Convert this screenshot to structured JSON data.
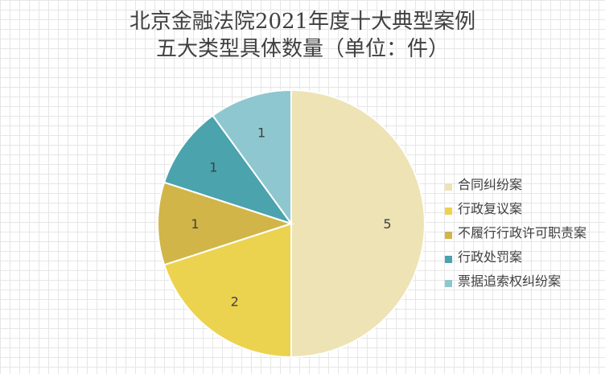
{
  "chart_data": {
    "type": "pie",
    "title_lines": [
      "北京金融法院2021年度十大典型案例",
      "五大类型具体数量（单位：件）"
    ],
    "categories": [
      "合同纠纷案",
      "行政复议案",
      "不履行行政许可职责案",
      "行政处罚案",
      "票据追索权纠纷案"
    ],
    "values": [
      5,
      2,
      1,
      1,
      1
    ],
    "colors": [
      "#ede3b5",
      "#ecd34f",
      "#d1b548",
      "#4aa3ad",
      "#8ec7cf"
    ],
    "data_labels": [
      "5",
      "2",
      "1",
      "1",
      "1"
    ],
    "legend_position": "right",
    "grid": true
  }
}
